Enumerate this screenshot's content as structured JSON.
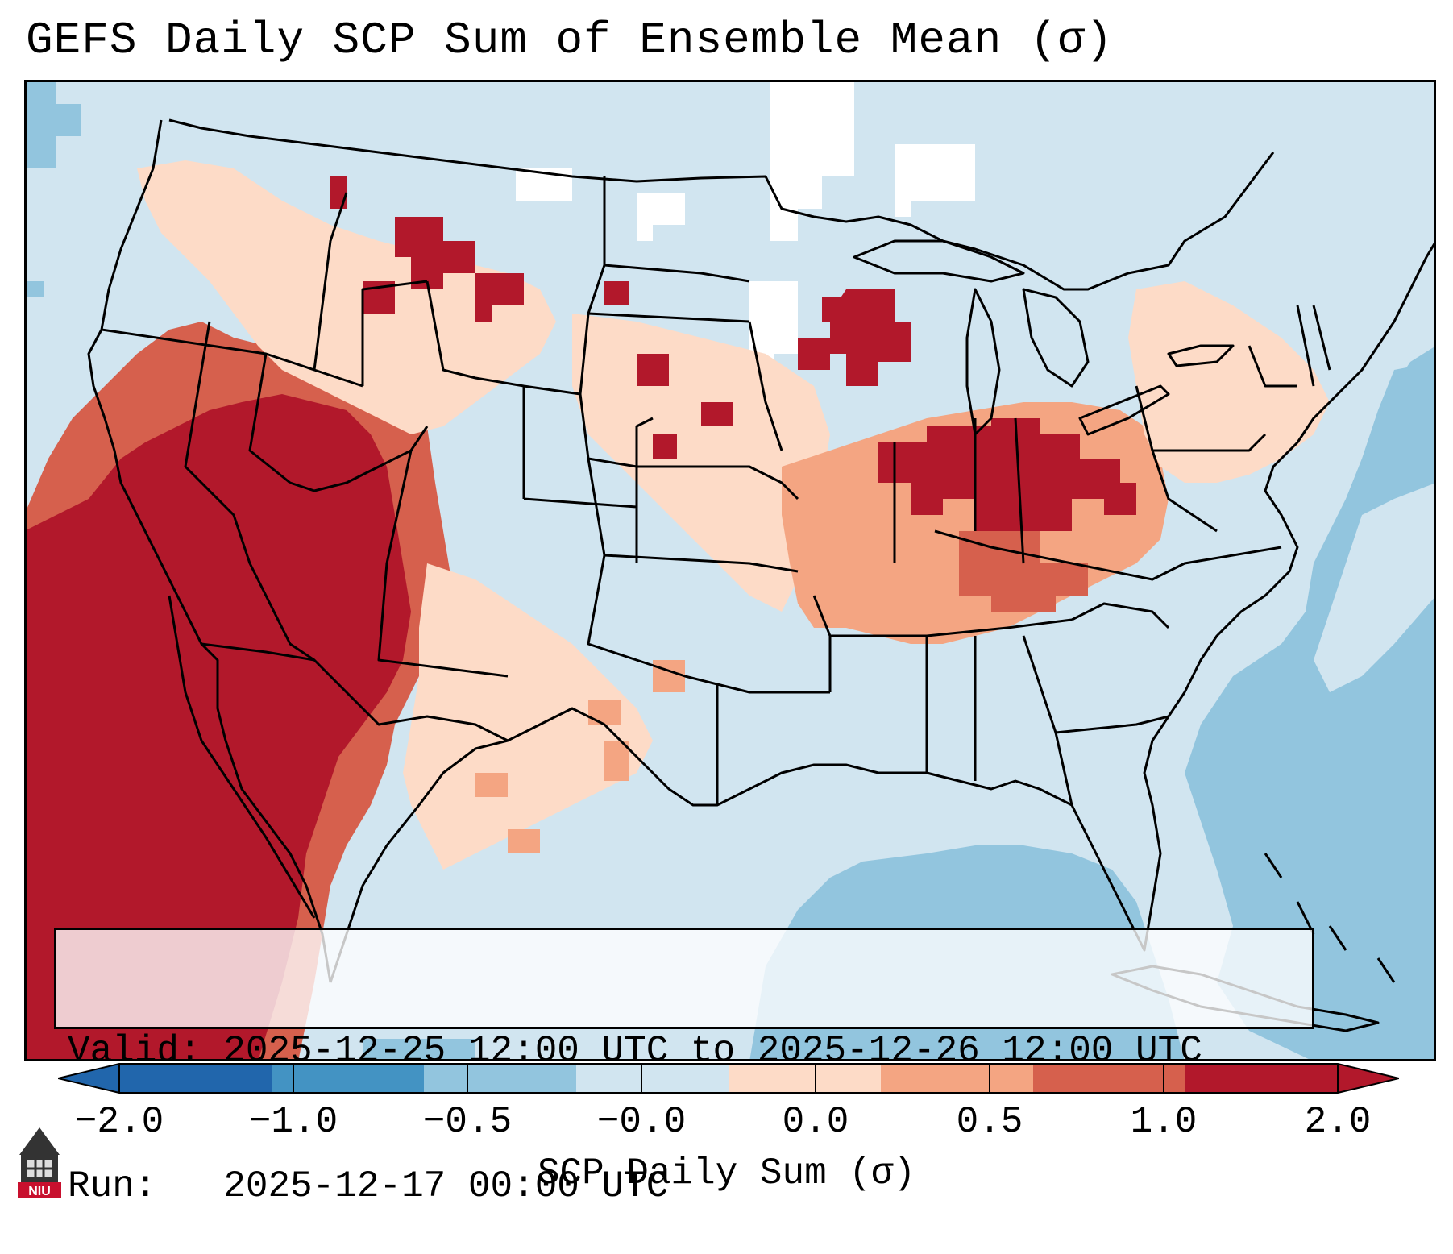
{
  "header": {
    "title": "GEFS Daily SCP Sum of Ensemble Mean (σ)"
  },
  "info_box": {
    "valid_label": "Valid: ",
    "valid_text": "2025-12-25 12:00 UTC to 2025-12-26 12:00 UTC",
    "run_label": "Run:   ",
    "run_text": "2025-12-17 00:00 UTC"
  },
  "colorbar": {
    "label": "SCP Daily Sum (σ)",
    "tick_labels": [
      "−2.0",
      "−1.0",
      "−0.5",
      "−0.0",
      "0.0",
      "0.5",
      "1.0",
      "2.0"
    ],
    "bin_colors": [
      "#2166ac",
      "#4393c3",
      "#92c5de",
      "#d1e5f0",
      "#fddbc7",
      "#f4a582",
      "#d6604d",
      "#b2182b"
    ],
    "under_color": "#2166ac",
    "over_color": "#b2182b"
  },
  "logo": {
    "text": "NIU"
  },
  "map": {
    "palette": {
      "neutral_blue": "#d1e5f0",
      "light_blue": "#92c5de",
      "white": "#ffffff",
      "peach": "#fddbc7",
      "salmon": "#f4a582",
      "coral": "#d6604d",
      "dark_red": "#b2182b"
    }
  }
}
